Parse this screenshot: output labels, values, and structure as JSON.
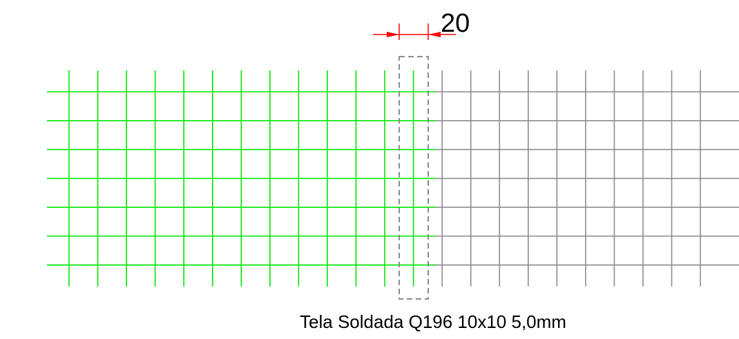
{
  "dimension": {
    "label": "20"
  },
  "caption": "Tela Soldada Q196 10x10 5,0mm"
}
